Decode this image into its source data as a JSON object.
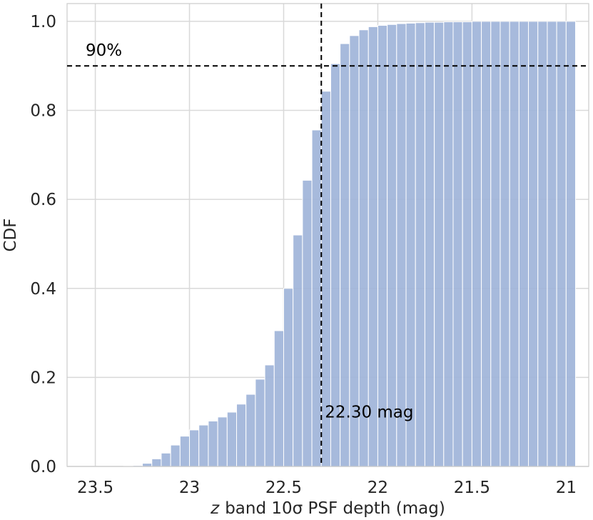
{
  "chart_data": {
    "type": "bar",
    "subtype": "cumulative-histogram",
    "xlabel_italic": "z",
    "xlabel": "band 10σ PSF depth (mag)",
    "ylabel": "CDF",
    "x_inverted": true,
    "xlim": [
      23.65,
      20.88
    ],
    "ylim": [
      0.0,
      1.04
    ],
    "grid": true,
    "x_ticks": [
      23.5,
      23.0,
      22.5,
      22.0,
      21.5,
      21.0
    ],
    "x_tick_labels": [
      "23.5",
      "23",
      "22.5",
      "22",
      "21.5",
      "21"
    ],
    "y_ticks": [
      0.0,
      0.2,
      0.4,
      0.6,
      0.8,
      1.0
    ],
    "y_tick_labels": [
      "0.0",
      "0.2",
      "0.4",
      "0.6",
      "0.8",
      "1.0"
    ],
    "bar_color": "#9fb4d9",
    "bin_width": 0.05,
    "bin_left_edges": [
      23.35,
      23.3,
      23.25,
      23.2,
      23.15,
      23.1,
      23.05,
      23.0,
      22.95,
      22.9,
      22.85,
      22.8,
      22.75,
      22.7,
      22.65,
      22.6,
      22.55,
      22.5,
      22.45,
      22.4,
      22.35,
      22.3,
      22.25,
      22.2,
      22.15,
      22.1,
      22.05,
      22.0,
      21.95,
      21.9,
      21.85,
      21.8,
      21.75,
      21.7,
      21.65,
      21.6,
      21.55,
      21.5,
      21.45,
      21.4,
      21.35,
      21.3,
      21.25,
      21.2,
      21.15,
      21.1,
      21.05,
      21.0
    ],
    "values": [
      0.001,
      0.002,
      0.007,
      0.017,
      0.03,
      0.048,
      0.068,
      0.082,
      0.093,
      0.102,
      0.111,
      0.122,
      0.14,
      0.162,
      0.196,
      0.228,
      0.305,
      0.4,
      0.52,
      0.643,
      0.756,
      0.843,
      0.905,
      0.95,
      0.968,
      0.981,
      0.988,
      0.991,
      0.993,
      0.995,
      0.996,
      0.997,
      0.998,
      0.998,
      0.999,
      0.999,
      0.999,
      1.0,
      1.0,
      1.0,
      1.0,
      1.0,
      1.0,
      1.0,
      1.0,
      1.0,
      1.0,
      1.0
    ],
    "hline": {
      "y": 0.9,
      "label": "90%",
      "style": "dashed",
      "color": "#000000"
    },
    "vline": {
      "x": 22.3,
      "label": "22.30 mag",
      "style": "dashed",
      "color": "#000000"
    }
  }
}
